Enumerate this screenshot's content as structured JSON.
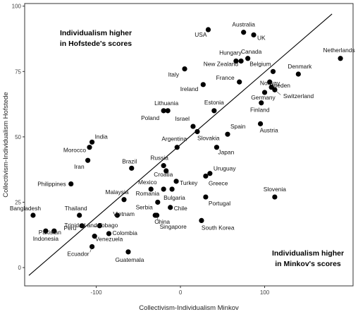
{
  "chart_data": {
    "type": "scatter",
    "xlabel": "Collectivism-Individualism Minkov",
    "ylabel": "Collectivism-Individualism Hofstede",
    "xlim": [
      -185,
      205
    ],
    "ylim": [
      -7,
      101
    ],
    "x_ticks": [
      -100,
      0,
      100
    ],
    "y_ticks": [
      0,
      25,
      50,
      75,
      100
    ],
    "grid": false,
    "annotations": [
      {
        "id": "top-left",
        "lines": [
          "Individualism higher",
          "in Hofstede's scores"
        ]
      },
      {
        "id": "bottom-right",
        "lines": [
          "Individualism higher",
          "in Minkov's scores"
        ]
      }
    ],
    "trend_line": {
      "from": [
        -180,
        -3
      ],
      "to": [
        180,
        97
      ]
    },
    "points": [
      {
        "label": "USA",
        "x": 33,
        "y": 91
      },
      {
        "label": "Australia",
        "x": 75,
        "y": 90
      },
      {
        "label": "UK",
        "x": 87,
        "y": 89
      },
      {
        "label": "Hungary",
        "x": 66,
        "y": 79
      },
      {
        "label": "Canada",
        "x": 80,
        "y": 80
      },
      {
        "label": "New Zealand",
        "x": 72,
        "y": 79
      },
      {
        "label": "Netherlands",
        "x": 190,
        "y": 80
      },
      {
        "label": "Italy",
        "x": 5,
        "y": 76
      },
      {
        "label": "Belgium",
        "x": 110,
        "y": 75
      },
      {
        "label": "Denmark",
        "x": 140,
        "y": 74
      },
      {
        "label": "France",
        "x": 70,
        "y": 71
      },
      {
        "label": "Norway",
        "x": 108,
        "y": 69
      },
      {
        "label": "Sweden",
        "x": 106,
        "y": 71
      },
      {
        "label": "Ireland",
        "x": 27,
        "y": 70
      },
      {
        "label": "Germany",
        "x": 100,
        "y": 67
      },
      {
        "label": "Switzerland",
        "x": 112,
        "y": 68
      },
      {
        "label": "Finland",
        "x": 96,
        "y": 63
      },
      {
        "label": "Lithuania",
        "x": -15,
        "y": 60
      },
      {
        "label": "Estonia",
        "x": 40,
        "y": 60
      },
      {
        "label": "Poland",
        "x": -20,
        "y": 60
      },
      {
        "label": "Israel",
        "x": 15,
        "y": 54
      },
      {
        "label": "Spain",
        "x": 56,
        "y": 51
      },
      {
        "label": "Austria",
        "x": 95,
        "y": 55
      },
      {
        "label": "Slovakia",
        "x": 20,
        "y": 52
      },
      {
        "label": "Argentina",
        "x": -4,
        "y": 46
      },
      {
        "label": "Japan",
        "x": 43,
        "y": 46
      },
      {
        "label": "India",
        "x": -105,
        "y": 48
      },
      {
        "label": "Morocco",
        "x": -108,
        "y": 46
      },
      {
        "label": "Iran",
        "x": -110,
        "y": 41
      },
      {
        "label": "Brazil",
        "x": -58,
        "y": 38
      },
      {
        "label": "Russia",
        "x": -20,
        "y": 39
      },
      {
        "label": "Croatia",
        "x": -17,
        "y": 37
      },
      {
        "label": "Uruguay",
        "x": 35,
        "y": 36
      },
      {
        "label": "Greece",
        "x": 30,
        "y": 35
      },
      {
        "label": "Turkey",
        "x": -5,
        "y": 33
      },
      {
        "label": "Mexico",
        "x": -35,
        "y": 30
      },
      {
        "label": "Romania",
        "x": -20,
        "y": 30
      },
      {
        "label": "Bulgaria",
        "x": -10,
        "y": 30
      },
      {
        "label": "Philippines",
        "x": -130,
        "y": 32
      },
      {
        "label": "Malaysia",
        "x": -67,
        "y": 26
      },
      {
        "label": "Thailand",
        "x": -120,
        "y": 20
      },
      {
        "label": "Bangladesh",
        "x": -175,
        "y": 20
      },
      {
        "label": "Vietnam",
        "x": -75,
        "y": 20
      },
      {
        "label": "Serbia",
        "x": -27,
        "y": 25
      },
      {
        "label": "Chile",
        "x": -12,
        "y": 23
      },
      {
        "label": "Portugal",
        "x": 30,
        "y": 27
      },
      {
        "label": "Slovenia",
        "x": 112,
        "y": 27
      },
      {
        "label": "Trinidad and Tobago",
        "x": -96,
        "y": 16
      },
      {
        "label": "Pakistan",
        "x": -150,
        "y": 14
      },
      {
        "label": "Peru",
        "x": -117,
        "y": 16
      },
      {
        "label": "China",
        "x": -30,
        "y": 20
      },
      {
        "label": "Singapore",
        "x": -28,
        "y": 20
      },
      {
        "label": "South Korea",
        "x": 25,
        "y": 18
      },
      {
        "label": "Colombia",
        "x": -85,
        "y": 13
      },
      {
        "label": "Indonesia",
        "x": -160,
        "y": 14
      },
      {
        "label": "Venezuela",
        "x": -102,
        "y": 12
      },
      {
        "label": "Ecuador",
        "x": -105,
        "y": 8
      },
      {
        "label": "Guatemala",
        "x": -62,
        "y": 6
      }
    ]
  }
}
